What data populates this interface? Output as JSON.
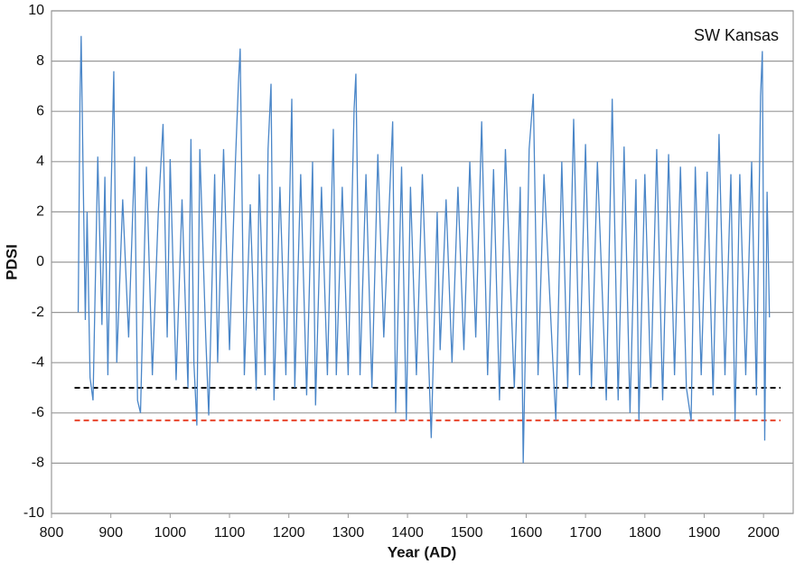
{
  "chart_data": {
    "type": "line",
    "xlabel": "Year (AD)",
    "ylabel": "PDSI",
    "annotation": "SW Kansas",
    "x": [
      845,
      848,
      850,
      853,
      857,
      860,
      865,
      870,
      878,
      885,
      890,
      895,
      900,
      905,
      910,
      920,
      930,
      940,
      945,
      950,
      960,
      970,
      980,
      988,
      995,
      1000,
      1010,
      1020,
      1030,
      1035,
      1040,
      1045,
      1050,
      1060,
      1065,
      1075,
      1080,
      1090,
      1100,
      1110,
      1115,
      1118,
      1125,
      1135,
      1145,
      1150,
      1160,
      1165,
      1170,
      1175,
      1185,
      1195,
      1205,
      1210,
      1220,
      1230,
      1240,
      1245,
      1255,
      1265,
      1275,
      1280,
      1290,
      1300,
      1310,
      1313,
      1320,
      1330,
      1340,
      1350,
      1360,
      1375,
      1380,
      1390,
      1398,
      1405,
      1415,
      1425,
      1440,
      1450,
      1455,
      1465,
      1475,
      1485,
      1495,
      1505,
      1515,
      1525,
      1535,
      1545,
      1555,
      1565,
      1580,
      1590,
      1595,
      1605,
      1612,
      1620,
      1630,
      1645,
      1650,
      1660,
      1670,
      1680,
      1690,
      1700,
      1710,
      1720,
      1735,
      1745,
      1755,
      1765,
      1775,
      1785,
      1790,
      1800,
      1810,
      1820,
      1830,
      1840,
      1850,
      1860,
      1870,
      1878,
      1885,
      1895,
      1905,
      1915,
      1925,
      1935,
      1945,
      1952,
      1960,
      1970,
      1980,
      1988,
      1995,
      1998,
      2002,
      2006,
      2010
    ],
    "series": [
      {
        "name": "PDSI",
        "color": "#4a86c8",
        "values": [
          -2,
          6.4,
          9.0,
          4,
          -2.3,
          2,
          -4.6,
          -5.5,
          4.2,
          -2.5,
          3.4,
          -4.5,
          2.3,
          7.6,
          -4,
          2.5,
          -3,
          4.2,
          -5.5,
          -6,
          3.8,
          -4.5,
          2,
          5.5,
          -3,
          4.1,
          -4.7,
          2.5,
          -5,
          4.9,
          -4,
          -6.5,
          4.5,
          -3,
          -6.1,
          3.5,
          -4,
          4.5,
          -3.5,
          4,
          7.1,
          8.5,
          -4.5,
          2.3,
          -5.1,
          3.5,
          -4.5,
          4.5,
          7.1,
          -5.5,
          3,
          -4.5,
          6.5,
          -5,
          3.5,
          -5.3,
          4,
          -5.7,
          3,
          -4.5,
          5.3,
          -4.5,
          3,
          -4.5,
          6.1,
          7.5,
          -4.5,
          3.5,
          -5,
          4.3,
          -3,
          5.6,
          -6,
          3.8,
          -6.3,
          3,
          -4.5,
          3.5,
          -7,
          2,
          -3.5,
          2.5,
          -4,
          3,
          -3.5,
          4,
          -3,
          5.6,
          -4.5,
          3.7,
          -5.5,
          4.5,
          -5,
          3,
          -8,
          4.5,
          6.7,
          -4.5,
          3.5,
          -4,
          -6.3,
          4,
          -5,
          5.7,
          -4.5,
          4.7,
          -5,
          4,
          -5.5,
          6.5,
          -5.5,
          4.6,
          -6,
          3.3,
          -6.3,
          3.5,
          -5,
          4.5,
          -5.5,
          4.3,
          -4.5,
          3.8,
          -5,
          -6.3,
          3.8,
          -4.5,
          3.6,
          -5.3,
          5.1,
          -4.5,
          3.5,
          -6.3,
          3.5,
          -4.5,
          4,
          -5.3,
          6.6,
          8.4,
          -7.1,
          2.8,
          -2.2
        ]
      }
    ],
    "reference_lines": [
      {
        "value": -5,
        "color": "#000000"
      },
      {
        "value": -6.3,
        "color": "#e8452c"
      }
    ],
    "xlim": [
      800,
      2050
    ],
    "xticks": [
      800,
      900,
      1000,
      1100,
      1200,
      1300,
      1400,
      1500,
      1600,
      1700,
      1800,
      1900,
      2000
    ],
    "ylim": [
      -10,
      10
    ],
    "yticks": [
      -10,
      -8,
      -6,
      -4,
      -2,
      0,
      2,
      4,
      6,
      8,
      10
    ],
    "grid": true
  }
}
